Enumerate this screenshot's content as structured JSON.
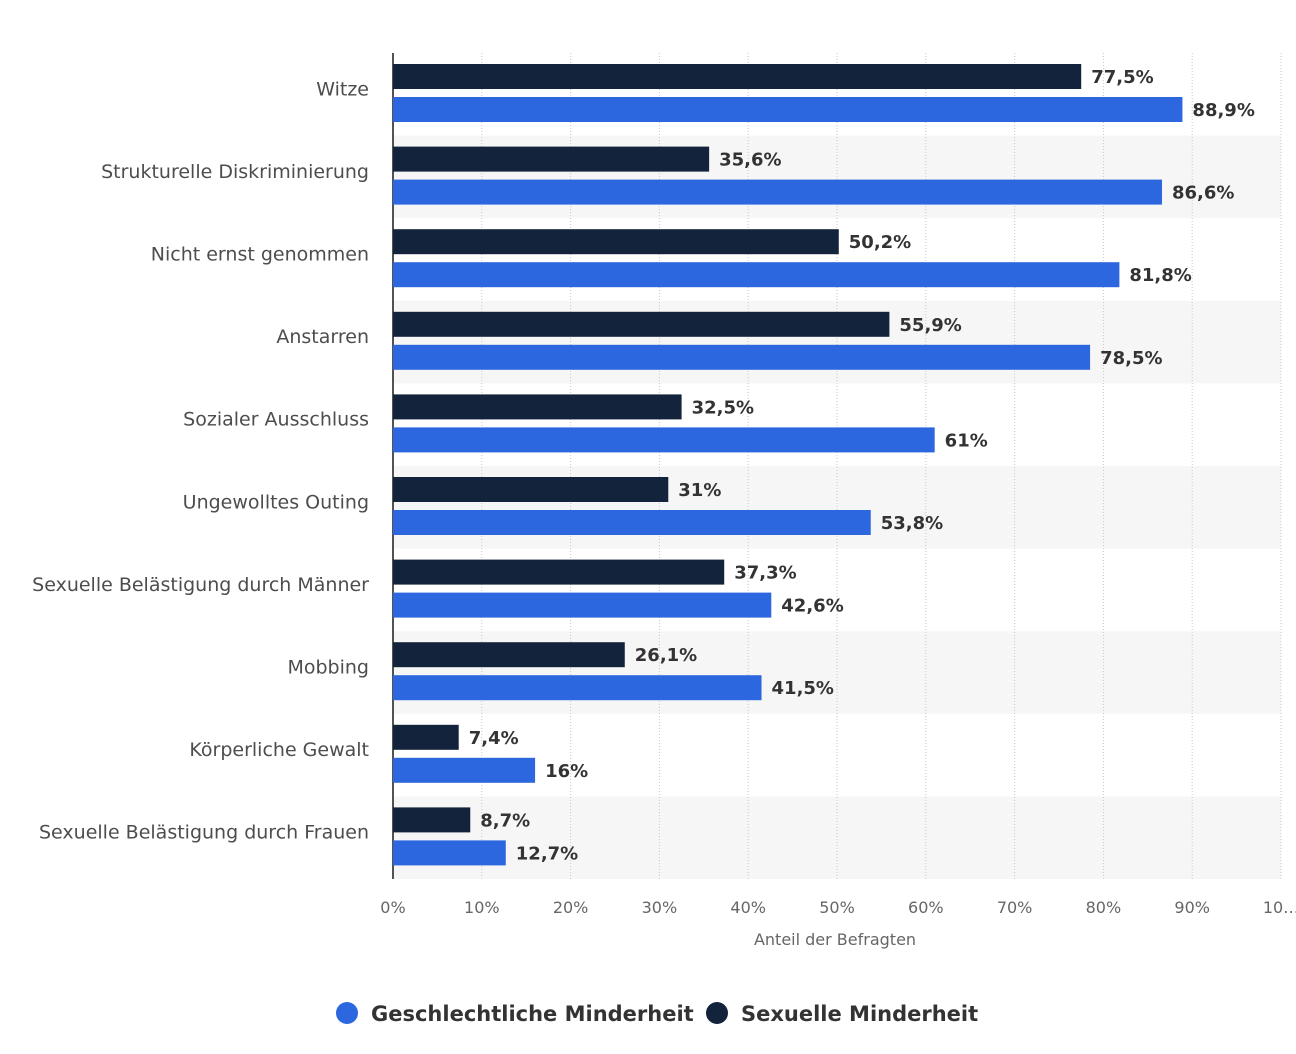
{
  "chart_data": {
    "type": "bar",
    "orientation": "horizontal",
    "categories": [
      "Witze",
      "Strukturelle Diskriminierung",
      "Nicht ernst genommen",
      "Anstarren",
      "Sozialer Ausschluss",
      "Ungewolltes Outing",
      "Sexuelle Belästigung durch Männer",
      "Mobbing",
      "Körperliche Gewalt",
      "Sexuelle Belästigung durch Frauen"
    ],
    "series": [
      {
        "name": "Sexuelle Minderheit",
        "color": "#14233c",
        "values": [
          77.5,
          35.6,
          50.2,
          55.9,
          32.5,
          31,
          37.3,
          26.1,
          7.4,
          8.7
        ],
        "labels": [
          "77,5%",
          "35,6%",
          "50,2%",
          "55,9%",
          "32,5%",
          "31%",
          "37,3%",
          "26,1%",
          "7,4%",
          "8,7%"
        ]
      },
      {
        "name": "Geschlechtliche Minderheit",
        "color": "#2c67df",
        "values": [
          88.9,
          86.6,
          81.8,
          78.5,
          61,
          53.8,
          42.6,
          41.5,
          16,
          12.7
        ],
        "labels": [
          "88,9%",
          "86,6%",
          "81,8%",
          "78,5%",
          "61%",
          "53,8%",
          "42,6%",
          "41,5%",
          "16%",
          "12,7%"
        ]
      }
    ],
    "xlim": [
      0,
      100
    ],
    "xticks": [
      "0%",
      "10%",
      "20%",
      "30%",
      "40%",
      "50%",
      "60%",
      "70%",
      "80%",
      "90%",
      "10…"
    ],
    "xlabel": "Anteil der Befragten",
    "legend": {
      "position": "bottom-center",
      "items": [
        "Geschlechtliche Minderheit",
        "Sexuelle Minderheit"
      ]
    },
    "grid": true
  }
}
